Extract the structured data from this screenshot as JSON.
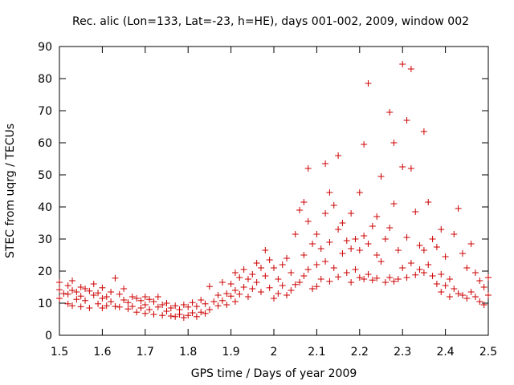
{
  "chart_data": {
    "type": "scatter",
    "title": "Rec. alic (Lon=133, Lat=-23, h=HE), days 001-002, 2009, window 002",
    "xlabel": "GPS time / Days of year 2009",
    "ylabel": "STEC from uqrg / TECUs",
    "xlim": [
      1.5,
      2.5
    ],
    "ylim": [
      0,
      90
    ],
    "xticks": [
      1.5,
      1.6,
      1.7,
      1.8,
      1.9,
      2.0,
      2.1,
      2.2,
      2.3,
      2.4,
      2.5
    ],
    "xtick_labels": [
      "1.5",
      "1.6",
      "1.7",
      "1.8",
      "1.9",
      "2",
      "2.1",
      "2.2",
      "2.3",
      "2.4",
      "2.5"
    ],
    "yticks": [
      0,
      10,
      20,
      30,
      40,
      50,
      60,
      70,
      80,
      90
    ],
    "ytick_labels": [
      "0",
      "10",
      "20",
      "30",
      "40",
      "50",
      "60",
      "70",
      "80",
      "90"
    ],
    "grid": false,
    "marker": "+",
    "color": "#cc0000",
    "series": [
      {
        "name": "STEC",
        "points": [
          [
            1.5,
            16.5
          ],
          [
            1.5,
            14.2
          ],
          [
            1.5,
            11.5
          ],
          [
            1.51,
            13.0
          ],
          [
            1.52,
            15.5
          ],
          [
            1.52,
            12.8
          ],
          [
            1.52,
            9.8
          ],
          [
            1.53,
            17.0
          ],
          [
            1.53,
            14.0
          ],
          [
            1.53,
            9.2
          ],
          [
            1.54,
            13.5
          ],
          [
            1.54,
            11.2
          ],
          [
            1.55,
            15.0
          ],
          [
            1.55,
            12.2
          ],
          [
            1.55,
            8.9
          ],
          [
            1.56,
            14.5
          ],
          [
            1.56,
            10.8
          ],
          [
            1.57,
            13.8
          ],
          [
            1.57,
            8.5
          ],
          [
            1.58,
            16.0
          ],
          [
            1.58,
            12.5
          ],
          [
            1.59,
            13.2
          ],
          [
            1.59,
            9.8
          ],
          [
            1.6,
            14.8
          ],
          [
            1.6,
            11.5
          ],
          [
            1.6,
            8.5
          ],
          [
            1.61,
            12.0
          ],
          [
            1.61,
            9.2
          ],
          [
            1.62,
            13.5
          ],
          [
            1.62,
            10.5
          ],
          [
            1.63,
            17.8
          ],
          [
            1.63,
            9.0
          ],
          [
            1.64,
            12.8
          ],
          [
            1.64,
            8.8
          ],
          [
            1.65,
            14.5
          ],
          [
            1.65,
            11.0
          ],
          [
            1.66,
            10.2
          ],
          [
            1.66,
            8.2
          ],
          [
            1.67,
            12.0
          ],
          [
            1.67,
            9.0
          ],
          [
            1.68,
            11.5
          ],
          [
            1.68,
            7.2
          ],
          [
            1.69,
            10.8
          ],
          [
            1.69,
            8.5
          ],
          [
            1.7,
            12.0
          ],
          [
            1.7,
            9.5
          ],
          [
            1.7,
            6.8
          ],
          [
            1.71,
            11.2
          ],
          [
            1.71,
            8.0
          ],
          [
            1.72,
            10.5
          ],
          [
            1.72,
            6.5
          ],
          [
            1.73,
            12.0
          ],
          [
            1.73,
            8.8
          ],
          [
            1.74,
            9.5
          ],
          [
            1.74,
            6.2
          ],
          [
            1.75,
            10.0
          ],
          [
            1.75,
            7.5
          ],
          [
            1.76,
            8.5
          ],
          [
            1.76,
            6.0
          ],
          [
            1.77,
            9.2
          ],
          [
            1.77,
            5.8
          ],
          [
            1.78,
            8.0
          ],
          [
            1.78,
            6.5
          ],
          [
            1.79,
            9.5
          ],
          [
            1.79,
            5.5
          ],
          [
            1.8,
            8.8
          ],
          [
            1.8,
            6.2
          ],
          [
            1.81,
            10.2
          ],
          [
            1.81,
            7.0
          ],
          [
            1.82,
            9.0
          ],
          [
            1.82,
            5.8
          ],
          [
            1.83,
            11.0
          ],
          [
            1.83,
            7.2
          ],
          [
            1.84,
            9.8
          ],
          [
            1.84,
            6.8
          ],
          [
            1.85,
            15.2
          ],
          [
            1.85,
            8.0
          ],
          [
            1.86,
            10.5
          ],
          [
            1.87,
            12.5
          ],
          [
            1.87,
            9.2
          ],
          [
            1.88,
            16.5
          ],
          [
            1.88,
            10.8
          ],
          [
            1.89,
            13.0
          ],
          [
            1.89,
            9.5
          ],
          [
            1.9,
            16.0
          ],
          [
            1.9,
            12.2
          ],
          [
            1.91,
            19.5
          ],
          [
            1.91,
            14.0
          ],
          [
            1.91,
            10.5
          ],
          [
            1.92,
            18.0
          ],
          [
            1.92,
            12.8
          ],
          [
            1.93,
            20.5
          ],
          [
            1.93,
            15.0
          ],
          [
            1.94,
            17.5
          ],
          [
            1.94,
            12.0
          ],
          [
            1.95,
            19.0
          ],
          [
            1.95,
            14.5
          ],
          [
            1.96,
            22.5
          ],
          [
            1.96,
            16.5
          ],
          [
            1.97,
            21.0
          ],
          [
            1.97,
            13.5
          ],
          [
            1.98,
            26.5
          ],
          [
            1.98,
            18.5
          ],
          [
            1.99,
            23.5
          ],
          [
            1.99,
            14.8
          ],
          [
            2.0,
            21.0
          ],
          [
            2.0,
            11.5
          ],
          [
            2.01,
            17.5
          ],
          [
            2.01,
            13.0
          ],
          [
            2.02,
            22.0
          ],
          [
            2.02,
            15.5
          ],
          [
            2.03,
            24.0
          ],
          [
            2.03,
            12.5
          ],
          [
            2.04,
            19.5
          ],
          [
            2.04,
            14.0
          ],
          [
            2.05,
            31.5
          ],
          [
            2.05,
            15.8
          ],
          [
            2.06,
            39.0
          ],
          [
            2.06,
            16.5
          ],
          [
            2.07,
            41.5
          ],
          [
            2.07,
            25.0
          ],
          [
            2.07,
            18.5
          ],
          [
            2.08,
            52.0
          ],
          [
            2.08,
            35.5
          ],
          [
            2.08,
            20.5
          ],
          [
            2.09,
            28.5
          ],
          [
            2.09,
            14.5
          ],
          [
            2.1,
            31.5
          ],
          [
            2.1,
            22.0
          ],
          [
            2.1,
            15.2
          ],
          [
            2.11,
            27.0
          ],
          [
            2.11,
            17.5
          ],
          [
            2.12,
            53.5
          ],
          [
            2.12,
            38.0
          ],
          [
            2.12,
            23.0
          ],
          [
            2.13,
            44.5
          ],
          [
            2.13,
            29.0
          ],
          [
            2.13,
            16.8
          ],
          [
            2.14,
            40.5
          ],
          [
            2.14,
            21.0
          ],
          [
            2.15,
            56.0
          ],
          [
            2.15,
            33.0
          ],
          [
            2.15,
            18.2
          ],
          [
            2.16,
            35.0
          ],
          [
            2.16,
            25.5
          ],
          [
            2.17,
            29.5
          ],
          [
            2.17,
            19.5
          ],
          [
            2.18,
            38.0
          ],
          [
            2.18,
            27.0
          ],
          [
            2.18,
            16.5
          ],
          [
            2.19,
            30.0
          ],
          [
            2.19,
            20.5
          ],
          [
            2.2,
            44.5
          ],
          [
            2.2,
            26.5
          ],
          [
            2.2,
            18.0
          ],
          [
            2.21,
            59.5
          ],
          [
            2.21,
            31.0
          ],
          [
            2.21,
            17.5
          ],
          [
            2.22,
            78.5
          ],
          [
            2.22,
            28.5
          ],
          [
            2.22,
            19.0
          ],
          [
            2.23,
            34.0
          ],
          [
            2.23,
            17.2
          ],
          [
            2.24,
            37.0
          ],
          [
            2.24,
            25.0
          ],
          [
            2.24,
            17.8
          ],
          [
            2.25,
            49.5
          ],
          [
            2.25,
            23.0
          ],
          [
            2.26,
            30.0
          ],
          [
            2.26,
            16.5
          ],
          [
            2.27,
            69.5
          ],
          [
            2.27,
            33.5
          ],
          [
            2.27,
            18.0
          ],
          [
            2.28,
            60.0
          ],
          [
            2.28,
            41.0
          ],
          [
            2.28,
            16.8
          ],
          [
            2.29,
            26.5
          ],
          [
            2.29,
            17.5
          ],
          [
            2.3,
            84.5
          ],
          [
            2.3,
            52.5
          ],
          [
            2.3,
            21.0
          ],
          [
            2.31,
            67.0
          ],
          [
            2.31,
            30.5
          ],
          [
            2.31,
            18.0
          ],
          [
            2.32,
            83.0
          ],
          [
            2.32,
            52.0
          ],
          [
            2.32,
            22.5
          ],
          [
            2.33,
            38.5
          ],
          [
            2.33,
            18.8
          ],
          [
            2.34,
            28.0
          ],
          [
            2.34,
            20.5
          ],
          [
            2.35,
            63.5
          ],
          [
            2.35,
            26.5
          ],
          [
            2.35,
            19.5
          ],
          [
            2.36,
            41.5
          ],
          [
            2.36,
            22.0
          ],
          [
            2.37,
            30.0
          ],
          [
            2.37,
            18.5
          ],
          [
            2.38,
            27.5
          ],
          [
            2.38,
            16.0
          ],
          [
            2.39,
            33.0
          ],
          [
            2.39,
            19.0
          ],
          [
            2.39,
            13.5
          ],
          [
            2.4,
            24.5
          ],
          [
            2.4,
            15.5
          ],
          [
            2.41,
            17.5
          ],
          [
            2.41,
            12.0
          ],
          [
            2.42,
            31.5
          ],
          [
            2.42,
            14.5
          ],
          [
            2.43,
            39.5
          ],
          [
            2.43,
            13.0
          ],
          [
            2.44,
            25.5
          ],
          [
            2.44,
            12.5
          ],
          [
            2.45,
            21.0
          ],
          [
            2.45,
            11.5
          ],
          [
            2.46,
            28.5
          ],
          [
            2.46,
            13.5
          ],
          [
            2.47,
            19.5
          ],
          [
            2.47,
            12.0
          ],
          [
            2.48,
            17.0
          ],
          [
            2.48,
            10.5
          ],
          [
            2.49,
            15.0
          ],
          [
            2.49,
            9.5
          ],
          [
            2.5,
            18.0
          ],
          [
            2.5,
            12.5
          ]
        ]
      }
    ]
  }
}
